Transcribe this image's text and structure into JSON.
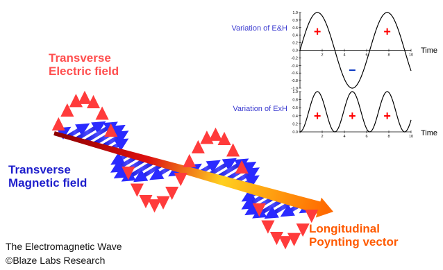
{
  "labels": {
    "electric": [
      "Transverse",
      "Electric field"
    ],
    "magnetic": [
      "Transverse",
      "Magnetic field"
    ],
    "poynting": [
      "Longitudinal",
      "Poynting vector"
    ]
  },
  "caption": {
    "line1": "The Electromagnetic Wave",
    "line2": "©Blaze Labs Research"
  },
  "colors": {
    "electric": "#ff3b3b",
    "magnetic": "#2a2aff",
    "text_red": "#ff4f4f",
    "text_blue": "#1e1ecc",
    "poynting_start": "#cc0000",
    "poynting_end": "#ff6600",
    "sign": "#ff0000",
    "minus": "#0030c0"
  },
  "chart_data": [
    {
      "type": "line",
      "title": "Variation of E&H",
      "xlabel": "Time",
      "xlim": [
        0,
        10
      ],
      "ylim": [
        -1.0,
        1.0
      ],
      "xticks": [
        0,
        2,
        4,
        6,
        8,
        10
      ],
      "yticks": [
        "1.0",
        "0.8",
        "0.6",
        "0.4",
        "0.2",
        "0.0",
        "-0.2",
        "-0.4",
        "-0.6",
        "-0.8",
        "-1.0"
      ],
      "series": [
        {
          "function": "sin(x)",
          "x_range": [
            0,
            10
          ]
        }
      ],
      "annotations": [
        {
          "text": "+",
          "x": 1.57,
          "y": 0.5
        },
        {
          "text": "–",
          "x": 4.71,
          "y": -0.5
        },
        {
          "text": "+",
          "x": 7.85,
          "y": 0.5
        }
      ]
    },
    {
      "type": "line",
      "title": "Variation of ExH",
      "xlabel": "Time",
      "xlim": [
        0,
        10
      ],
      "ylim": [
        0.0,
        1.0
      ],
      "xticks": [
        0,
        2,
        4,
        6,
        8,
        10
      ],
      "yticks": [
        "1.0",
        "0.8",
        "0.6",
        "0.4",
        "0.2",
        "0.0"
      ],
      "series": [
        {
          "function": "sin(x)^2",
          "x_range": [
            0,
            10
          ]
        }
      ],
      "annotations": [
        {
          "text": "+",
          "x": 1.57,
          "y": 0.4
        },
        {
          "text": "+",
          "x": 4.71,
          "y": 0.4
        },
        {
          "text": "+",
          "x": 7.85,
          "y": 0.4
        }
      ]
    }
  ]
}
